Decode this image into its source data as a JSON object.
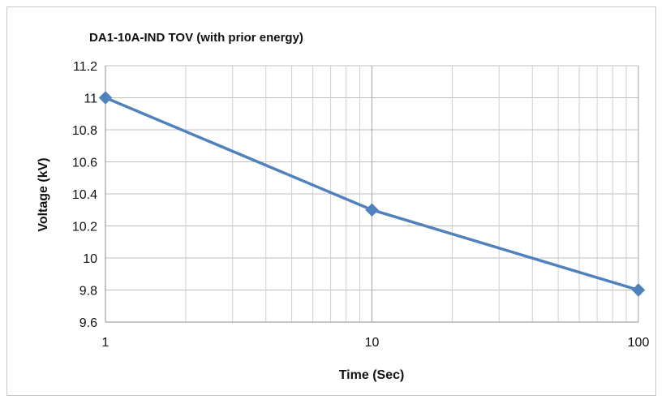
{
  "chart_data": {
    "type": "line",
    "title": "DA1-10A-IND TOV (with prior energy)",
    "xlabel": "Time (Sec)",
    "ylabel": "Voltage (kV)",
    "x_scale": "log",
    "xlim": [
      1,
      100
    ],
    "ylim": [
      9.6,
      11.2
    ],
    "x_ticks": [
      "1",
      "10",
      "100"
    ],
    "y_ticks": [
      "9.6",
      "9.8",
      "10",
      "10.2",
      "10.4",
      "10.6",
      "10.8",
      "11",
      "11.2"
    ],
    "grid": true,
    "legend": "none",
    "series": [
      {
        "x": [
          1,
          10,
          100
        ],
        "y": [
          11,
          10.3,
          9.8
        ],
        "color": "#4f81bd",
        "marker": "diamond"
      }
    ]
  }
}
